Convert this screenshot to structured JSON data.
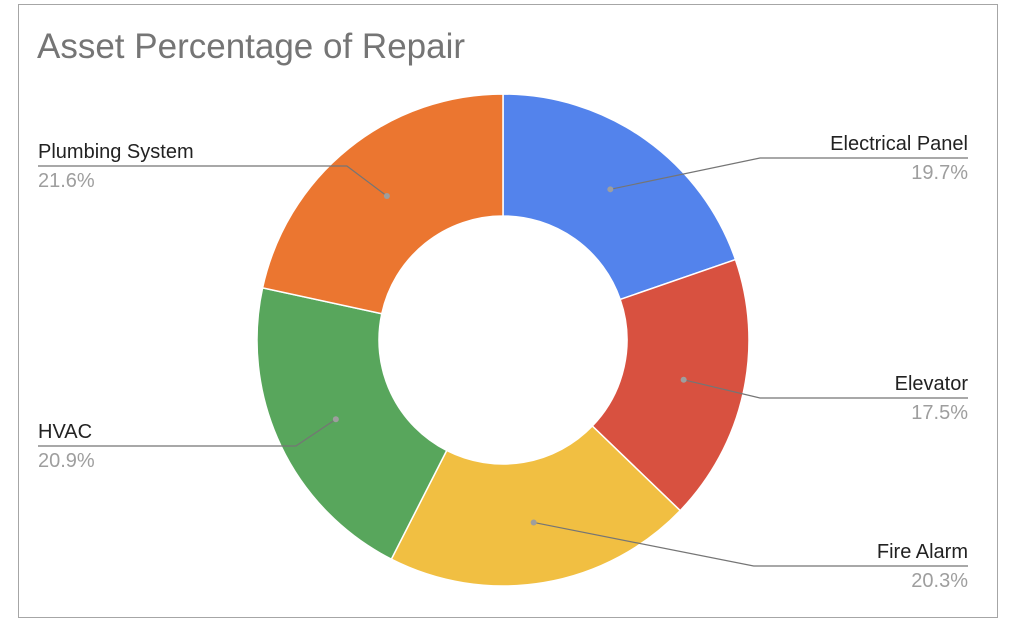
{
  "chart_data": {
    "type": "pie",
    "donut": true,
    "title": "Asset Percentage of Repair",
    "slices": [
      {
        "label": "Electrical Panel",
        "value": 19.7,
        "display": "19.7%",
        "color": "#5383ec"
      },
      {
        "label": "Elevator",
        "value": 17.5,
        "display": "17.5%",
        "color": "#d85140"
      },
      {
        "label": "Fire Alarm",
        "value": 20.3,
        "display": "20.3%",
        "color": "#f1bf42"
      },
      {
        "label": "HVAC",
        "value": 20.9,
        "display": "20.9%",
        "color": "#58a65c"
      },
      {
        "label": "Plumbing System",
        "value": 21.6,
        "display": "21.6%",
        "color": "#eb7630"
      }
    ],
    "legend": "none"
  }
}
